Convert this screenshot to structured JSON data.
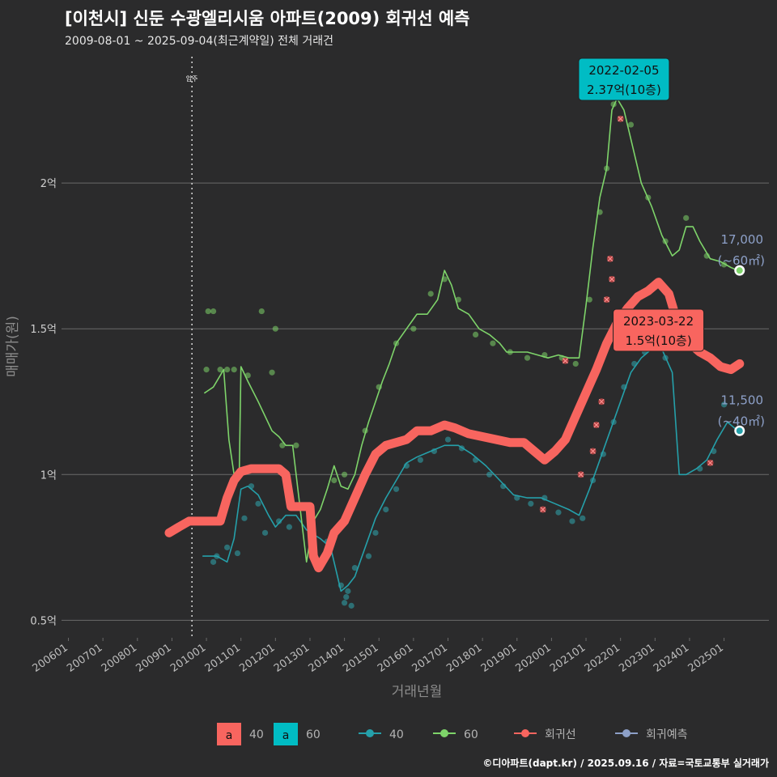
{
  "chart_data": {
    "type": "line",
    "title": "[이천시] 신둔 수광엘리시움 아파트(2009) 회귀선 예측",
    "subtitle": "2009-08-01 ~ 2025-09-04(최근계약일) 전체 거래건",
    "xlabel": "거래년월",
    "ylabel": "매매가(원)",
    "caption": "©디아파트(dapt.kr) / 2025.09.16 / 자료=국토교통부 실거래가",
    "x_ticks": [
      "200601",
      "200701",
      "200801",
      "200901",
      "201001",
      "201101",
      "201201",
      "201301",
      "201401",
      "201501",
      "201601",
      "201701",
      "201801",
      "201901",
      "202001",
      "202101",
      "202201",
      "202301",
      "202401",
      "202501"
    ],
    "y_ticks": [
      {
        "value": 0.5,
        "label": "0.5억"
      },
      {
        "value": 1.0,
        "label": "1억"
      },
      {
        "value": 1.5,
        "label": "1.5억"
      },
      {
        "value": 2.0,
        "label": "2억"
      }
    ],
    "xlim": [
      2005.8,
      2026.3
    ],
    "ylim": [
      0.44,
      2.45
    ],
    "event_line": {
      "x": 2009.58,
      "label": "입주"
    },
    "series": [
      {
        "name": "회귀선",
        "color": "#f8655f",
        "points": [
          [
            2008.92,
            0.8
          ],
          [
            2009.2,
            0.82
          ],
          [
            2009.5,
            0.84
          ],
          [
            2010.0,
            0.84
          ],
          [
            2010.4,
            0.84
          ],
          [
            2010.6,
            0.92
          ],
          [
            2010.8,
            0.98
          ],
          [
            2011.0,
            1.01
          ],
          [
            2011.3,
            1.02
          ],
          [
            2011.6,
            1.02
          ],
          [
            2011.9,
            1.02
          ],
          [
            2012.1,
            1.02
          ],
          [
            2012.3,
            1.0
          ],
          [
            2012.45,
            0.89
          ],
          [
            2012.7,
            0.89
          ],
          [
            2013.0,
            0.89
          ],
          [
            2013.1,
            0.72
          ],
          [
            2013.25,
            0.68
          ],
          [
            2013.5,
            0.73
          ],
          [
            2013.7,
            0.8
          ],
          [
            2014.0,
            0.84
          ],
          [
            2014.3,
            0.92
          ],
          [
            2014.6,
            1.0
          ],
          [
            2014.9,
            1.07
          ],
          [
            2015.2,
            1.1
          ],
          [
            2015.5,
            1.11
          ],
          [
            2015.8,
            1.12
          ],
          [
            2016.1,
            1.15
          ],
          [
            2016.5,
            1.15
          ],
          [
            2016.9,
            1.17
          ],
          [
            2017.2,
            1.16
          ],
          [
            2017.6,
            1.14
          ],
          [
            2018.0,
            1.13
          ],
          [
            2018.4,
            1.12
          ],
          [
            2018.8,
            1.11
          ],
          [
            2019.2,
            1.11
          ],
          [
            2019.5,
            1.08
          ],
          [
            2019.8,
            1.05
          ],
          [
            2020.1,
            1.08
          ],
          [
            2020.4,
            1.12
          ],
          [
            2020.7,
            1.2
          ],
          [
            2021.0,
            1.28
          ],
          [
            2021.3,
            1.36
          ],
          [
            2021.6,
            1.45
          ],
          [
            2021.9,
            1.52
          ],
          [
            2022.2,
            1.57
          ],
          [
            2022.5,
            1.61
          ],
          [
            2022.8,
            1.63
          ],
          [
            2023.1,
            1.66
          ],
          [
            2023.4,
            1.62
          ],
          [
            2023.7,
            1.5
          ],
          [
            2024.0,
            1.45
          ],
          [
            2024.3,
            1.42
          ],
          [
            2024.6,
            1.4
          ],
          [
            2024.9,
            1.37
          ],
          [
            2025.2,
            1.36
          ],
          [
            2025.45,
            1.38
          ]
        ]
      },
      {
        "name": "60",
        "color": "#7ed46a",
        "points": [
          [
            2009.95,
            1.28
          ],
          [
            2010.2,
            1.3
          ],
          [
            2010.5,
            1.36
          ],
          [
            2010.65,
            1.12
          ],
          [
            2010.8,
            1.0
          ],
          [
            2010.95,
            1.0
          ],
          [
            2011.0,
            1.37
          ],
          [
            2011.2,
            1.32
          ],
          [
            2011.5,
            1.25
          ],
          [
            2011.9,
            1.15
          ],
          [
            2012.1,
            1.13
          ],
          [
            2012.3,
            1.1
          ],
          [
            2012.5,
            1.1
          ],
          [
            2012.9,
            0.7
          ],
          [
            2013.1,
            0.84
          ],
          [
            2013.3,
            0.88
          ],
          [
            2013.5,
            0.95
          ],
          [
            2013.7,
            1.03
          ],
          [
            2013.9,
            0.96
          ],
          [
            2014.1,
            0.95
          ],
          [
            2014.3,
            1.0
          ],
          [
            2014.5,
            1.1
          ],
          [
            2014.7,
            1.18
          ],
          [
            2014.9,
            1.25
          ],
          [
            2015.1,
            1.32
          ],
          [
            2015.3,
            1.38
          ],
          [
            2015.5,
            1.45
          ],
          [
            2015.8,
            1.5
          ],
          [
            2016.1,
            1.55
          ],
          [
            2016.4,
            1.55
          ],
          [
            2016.7,
            1.6
          ],
          [
            2016.9,
            1.7
          ],
          [
            2017.1,
            1.65
          ],
          [
            2017.3,
            1.57
          ],
          [
            2017.6,
            1.55
          ],
          [
            2017.9,
            1.5
          ],
          [
            2018.2,
            1.48
          ],
          [
            2018.5,
            1.45
          ],
          [
            2018.7,
            1.42
          ],
          [
            2019.0,
            1.42
          ],
          [
            2019.3,
            1.42
          ],
          [
            2019.6,
            1.41
          ],
          [
            2019.9,
            1.4
          ],
          [
            2020.2,
            1.41
          ],
          [
            2020.5,
            1.4
          ],
          [
            2020.8,
            1.4
          ],
          [
            2021.0,
            1.58
          ],
          [
            2021.2,
            1.78
          ],
          [
            2021.4,
            1.95
          ],
          [
            2021.6,
            2.05
          ],
          [
            2021.75,
            2.25
          ],
          [
            2021.9,
            2.29
          ],
          [
            2022.1,
            2.25
          ],
          [
            2022.3,
            2.15
          ],
          [
            2022.6,
            2.0
          ],
          [
            2022.9,
            1.92
          ],
          [
            2023.2,
            1.82
          ],
          [
            2023.5,
            1.75
          ],
          [
            2023.7,
            1.77
          ],
          [
            2023.9,
            1.85
          ],
          [
            2024.1,
            1.85
          ],
          [
            2024.3,
            1.8
          ],
          [
            2024.6,
            1.74
          ],
          [
            2024.9,
            1.73
          ],
          [
            2025.2,
            1.71
          ],
          [
            2025.4,
            1.7
          ]
        ]
      },
      {
        "name": "40",
        "color": "#25a0aa",
        "points": [
          [
            2009.9,
            0.72
          ],
          [
            2010.3,
            0.72
          ],
          [
            2010.6,
            0.7
          ],
          [
            2010.8,
            0.78
          ],
          [
            2011.0,
            0.95
          ],
          [
            2011.2,
            0.96
          ],
          [
            2011.5,
            0.93
          ],
          [
            2011.8,
            0.86
          ],
          [
            2012.0,
            0.82
          ],
          [
            2012.3,
            0.86
          ],
          [
            2012.6,
            0.86
          ],
          [
            2012.9,
            0.81
          ],
          [
            2013.3,
            0.78
          ],
          [
            2013.6,
            0.75
          ],
          [
            2013.9,
            0.6
          ],
          [
            2014.1,
            0.62
          ],
          [
            2014.3,
            0.65
          ],
          [
            2014.6,
            0.75
          ],
          [
            2014.9,
            0.85
          ],
          [
            2015.2,
            0.92
          ],
          [
            2015.5,
            0.98
          ],
          [
            2015.8,
            1.04
          ],
          [
            2016.1,
            1.06
          ],
          [
            2016.5,
            1.08
          ],
          [
            2016.9,
            1.1
          ],
          [
            2017.3,
            1.1
          ],
          [
            2017.7,
            1.07
          ],
          [
            2018.1,
            1.03
          ],
          [
            2018.5,
            0.98
          ],
          [
            2018.9,
            0.93
          ],
          [
            2019.3,
            0.92
          ],
          [
            2019.7,
            0.92
          ],
          [
            2020.1,
            0.9
          ],
          [
            2020.5,
            0.88
          ],
          [
            2020.8,
            0.86
          ],
          [
            2021.1,
            0.95
          ],
          [
            2021.4,
            1.05
          ],
          [
            2021.7,
            1.15
          ],
          [
            2022.0,
            1.25
          ],
          [
            2022.3,
            1.35
          ],
          [
            2022.6,
            1.4
          ],
          [
            2022.9,
            1.43
          ],
          [
            2023.2,
            1.43
          ],
          [
            2023.5,
            1.35
          ],
          [
            2023.7,
            1.0
          ],
          [
            2023.9,
            1.0
          ],
          [
            2024.2,
            1.02
          ],
          [
            2024.5,
            1.05
          ],
          [
            2024.8,
            1.12
          ],
          [
            2025.1,
            1.18
          ],
          [
            2025.4,
            1.15
          ]
        ]
      }
    ],
    "scatter": [
      {
        "name": "40",
        "color": "#2fa8b0",
        "points": [
          [
            2010.2,
            0.7
          ],
          [
            2010.3,
            0.72
          ],
          [
            2010.6,
            0.75
          ],
          [
            2010.9,
            0.73
          ],
          [
            2011.1,
            0.85
          ],
          [
            2011.3,
            0.96
          ],
          [
            2011.5,
            0.9
          ],
          [
            2011.7,
            0.8
          ],
          [
            2012.1,
            0.84
          ],
          [
            2012.4,
            0.82
          ],
          [
            2013.5,
            0.77
          ],
          [
            2013.9,
            0.62
          ],
          [
            2014.0,
            0.56
          ],
          [
            2014.05,
            0.58
          ],
          [
            2014.1,
            0.6
          ],
          [
            2014.2,
            0.55
          ],
          [
            2014.3,
            0.68
          ],
          [
            2014.7,
            0.72
          ],
          [
            2014.9,
            0.8
          ],
          [
            2015.2,
            0.88
          ],
          [
            2015.5,
            0.95
          ],
          [
            2015.8,
            1.03
          ],
          [
            2016.2,
            1.05
          ],
          [
            2016.6,
            1.08
          ],
          [
            2017.0,
            1.12
          ],
          [
            2017.4,
            1.09
          ],
          [
            2017.8,
            1.05
          ],
          [
            2018.2,
            1.0
          ],
          [
            2018.6,
            0.96
          ],
          [
            2019.0,
            0.92
          ],
          [
            2019.4,
            0.9
          ],
          [
            2019.8,
            0.92
          ],
          [
            2020.2,
            0.87
          ],
          [
            2020.6,
            0.84
          ],
          [
            2020.9,
            0.85
          ],
          [
            2021.2,
            0.98
          ],
          [
            2021.5,
            1.07
          ],
          [
            2021.8,
            1.18
          ],
          [
            2022.1,
            1.3
          ],
          [
            2022.4,
            1.38
          ],
          [
            2022.7,
            1.42
          ],
          [
            2023.0,
            1.45
          ],
          [
            2023.3,
            1.4
          ],
          [
            2024.3,
            1.02
          ],
          [
            2024.7,
            1.08
          ],
          [
            2025.0,
            1.24
          ]
        ]
      },
      {
        "name": "60",
        "color": "#7ed46a",
        "points": [
          [
            2010.0,
            1.36
          ],
          [
            2010.05,
            1.56
          ],
          [
            2010.2,
            1.56
          ],
          [
            2010.4,
            1.36
          ],
          [
            2010.6,
            1.36
          ],
          [
            2010.8,
            1.36
          ],
          [
            2011.2,
            1.34
          ],
          [
            2011.6,
            1.56
          ],
          [
            2011.9,
            1.35
          ],
          [
            2012.0,
            1.5
          ],
          [
            2012.2,
            1.1
          ],
          [
            2012.6,
            1.1
          ],
          [
            2013.2,
            0.7
          ],
          [
            2013.7,
            0.98
          ],
          [
            2014.0,
            1.0
          ],
          [
            2014.6,
            1.15
          ],
          [
            2015.0,
            1.3
          ],
          [
            2015.5,
            1.45
          ],
          [
            2016.0,
            1.5
          ],
          [
            2016.5,
            1.62
          ],
          [
            2016.9,
            1.67
          ],
          [
            2017.3,
            1.6
          ],
          [
            2017.8,
            1.48
          ],
          [
            2018.3,
            1.45
          ],
          [
            2018.8,
            1.42
          ],
          [
            2019.3,
            1.4
          ],
          [
            2019.8,
            1.41
          ],
          [
            2020.3,
            1.4
          ],
          [
            2020.7,
            1.38
          ],
          [
            2021.1,
            1.6
          ],
          [
            2021.4,
            1.9
          ],
          [
            2021.6,
            2.05
          ],
          [
            2021.8,
            2.27
          ],
          [
            2022.0,
            2.37
          ],
          [
            2022.3,
            2.2
          ],
          [
            2022.8,
            1.95
          ],
          [
            2023.3,
            1.8
          ],
          [
            2023.9,
            1.88
          ],
          [
            2024.5,
            1.75
          ],
          [
            2025.0,
            1.72
          ]
        ]
      }
    ],
    "regression_markers": [
      [
        2019.75,
        0.88
      ],
      [
        2020.4,
        1.39
      ],
      [
        2020.85,
        1.0
      ],
      [
        2021.2,
        1.08
      ],
      [
        2021.3,
        1.17
      ],
      [
        2021.45,
        1.25
      ],
      [
        2021.6,
        1.6
      ],
      [
        2021.7,
        1.74
      ],
      [
        2021.75,
        1.67
      ],
      [
        2022.0,
        2.22
      ],
      [
        2024.6,
        1.04
      ]
    ],
    "annotations": [
      {
        "x": 2022.1,
        "y": 2.37,
        "label": "2022-02-05\n2.37억(10층)",
        "fill": "#00bcc4"
      },
      {
        "x": 2023.1,
        "y": 1.5,
        "label": "2023-03-22\n1.5억(10층)",
        "fill": "#f8655f"
      }
    ],
    "end_labels": [
      {
        "x": 2025.45,
        "y": 1.7,
        "price": "17,000",
        "area": "(~60㎡)",
        "dot": "#7ed46a"
      },
      {
        "x": 2025.45,
        "y": 1.15,
        "price": "11,500",
        "area": "(~40㎡)",
        "dot": "#25a0aa"
      }
    ],
    "legend": {
      "fill_keys": [
        {
          "label": "40",
          "color": "#f8655f",
          "glyph": "a"
        },
        {
          "label": "60",
          "color": "#00bcc4",
          "glyph": "a"
        }
      ],
      "line_keys": [
        {
          "label": "40",
          "color": "#25a0aa"
        },
        {
          "label": "60",
          "color": "#7ed46a"
        },
        {
          "label": "회귀선",
          "color": "#f8655f"
        },
        {
          "label": "회귀예측",
          "color": "#8da0c8"
        }
      ]
    }
  }
}
